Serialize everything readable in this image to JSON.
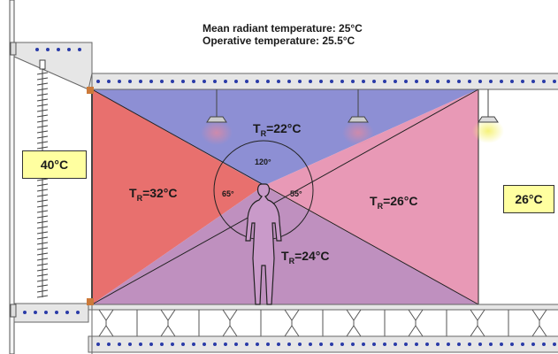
{
  "header": {
    "mean_radiant": "Mean radiant temperature: 25°C",
    "operative": "Operative temperature: 25.5°C"
  },
  "zones": {
    "ceiling": {
      "prefix": "T",
      "sub": "R",
      "value": "=22°C",
      "color": "#8d8fd4"
    },
    "left_wall": {
      "prefix": "T",
      "sub": "R",
      "value": "=32°C",
      "color": "#e8706e"
    },
    "right_wall": {
      "prefix": "T",
      "sub": "R",
      "value": "=26°C",
      "color": "#e899b6"
    },
    "floor": {
      "prefix": "T",
      "sub": "R",
      "value": "=24°C",
      "color": "#bf90bf"
    }
  },
  "angles": {
    "top": "120°",
    "left": "65°",
    "right": "55°"
  },
  "outside": {
    "left": "40°C",
    "right": "26°C"
  },
  "colors": {
    "slab": "#e6e6e6",
    "dots": "#2a3ba8",
    "label_bg": "#ffffa0",
    "lamp_glow": "#f3ef60"
  }
}
